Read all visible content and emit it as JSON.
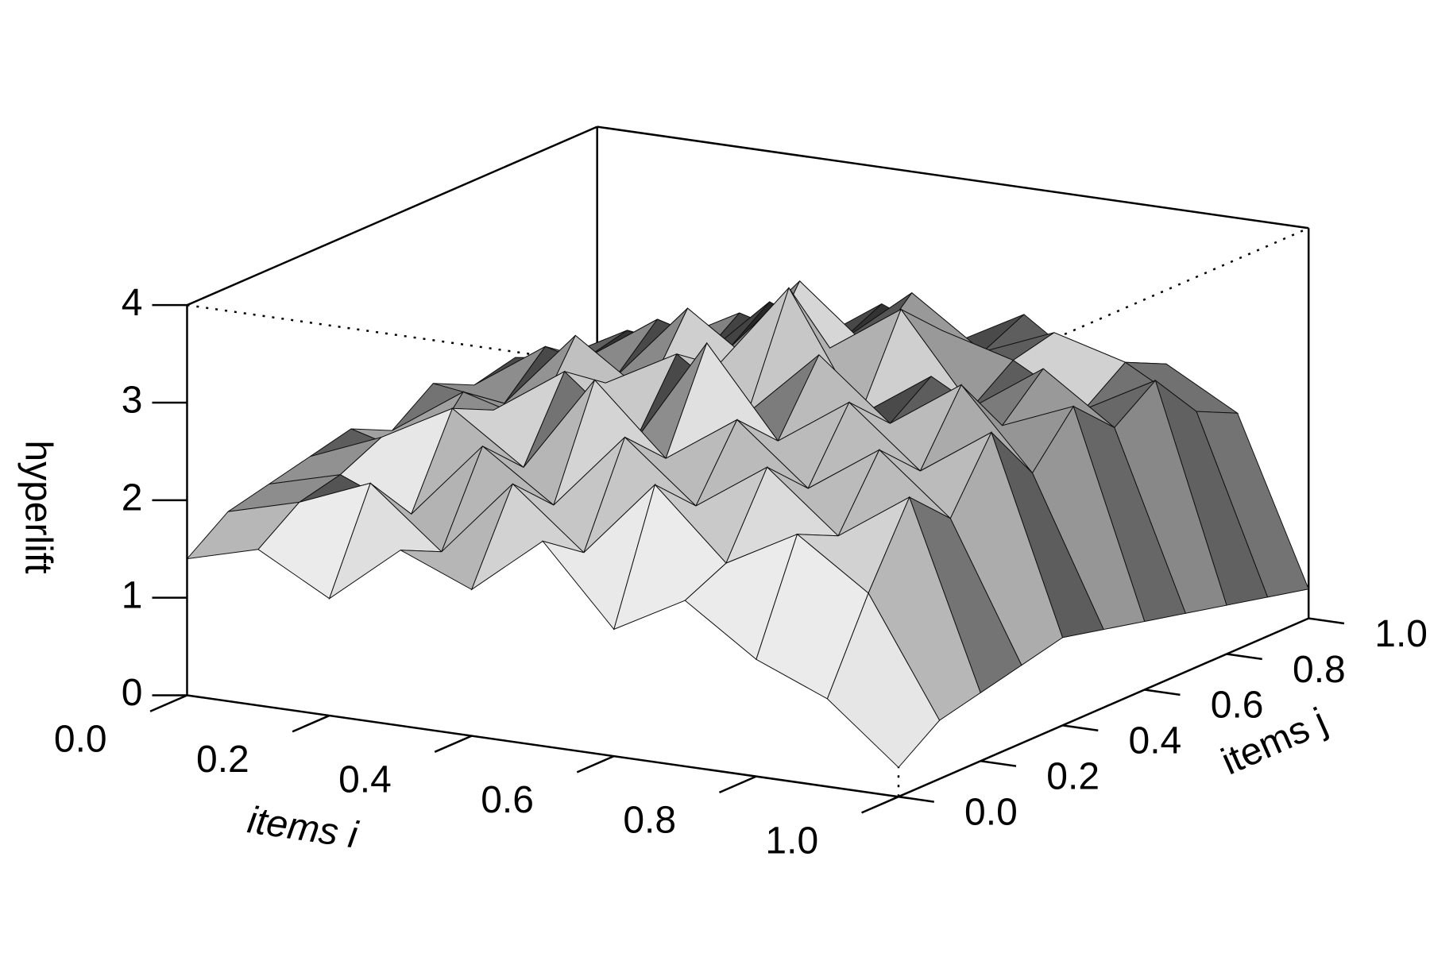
{
  "chart_data": {
    "type": "surface",
    "xlabel": "items i",
    "ylabel": "items j",
    "zlabel": "hyperlift",
    "x": [
      0,
      0.1,
      0.2,
      0.3,
      0.4,
      0.5,
      0.6,
      0.7,
      0.8,
      0.9,
      1
    ],
    "y": [
      0,
      0.1,
      0.2,
      0.3,
      0.4,
      0.5,
      0.6,
      0.7,
      0.8,
      0.9,
      1
    ],
    "z": [
      [
        1.4,
        1.6,
        1.2,
        1.8,
        1.5,
        2.1,
        1.3,
        1.7,
        1.2,
        0.9,
        0.3
      ],
      [
        1.7,
        1.9,
        2.2,
        1.6,
        2.4,
        1.8,
        2.6,
        1.9,
        2.3,
        1.8,
        0.6
      ],
      [
        1.8,
        2.0,
        1.7,
        2.5,
        2.0,
        2.8,
        2.2,
        2.7,
        2.1,
        2.6,
        0.7
      ],
      [
        1.9,
        2.2,
        2.6,
        2.1,
        3.1,
        2.4,
        2.9,
        2.3,
        2.8,
        2.2,
        0.8
      ],
      [
        2.0,
        1.8,
        2.4,
        2.9,
        2.3,
        3.4,
        2.5,
        3.0,
        2.4,
        2.9,
        0.9
      ],
      [
        1.8,
        2.3,
        2.1,
        2.6,
        3.0,
        2.5,
        3.2,
        2.6,
        3.1,
        2.3,
        0.8
      ],
      [
        2.1,
        2.0,
        2.8,
        2.3,
        2.7,
        3.6,
        2.4,
        2.9,
        2.5,
        2.8,
        0.7
      ],
      [
        1.9,
        2.4,
        2.2,
        3.0,
        2.5,
        2.8,
        3.3,
        2.4,
        2.9,
        2.4,
        0.6
      ],
      [
        2.0,
        2.1,
        2.6,
        2.4,
        3.2,
        2.6,
        2.9,
        2.7,
        2.3,
        2.7,
        0.5
      ],
      [
        1.8,
        2.2,
        2.0,
        2.7,
        2.4,
        3.0,
        2.5,
        2.8,
        2.6,
        2.2,
        0.4
      ],
      [
        1.7,
        1.9,
        2.3,
        2.1,
        2.6,
        2.3,
        2.7,
        2.2,
        2.4,
        2.0,
        0.3
      ]
    ],
    "xlim": [
      0,
      1
    ],
    "ylim": [
      0,
      1
    ],
    "zlim": [
      0,
      4
    ],
    "xticks": [
      {
        "value": 0,
        "label": "0.0"
      },
      {
        "value": 0.2,
        "label": "0.2"
      },
      {
        "value": 0.4,
        "label": "0.4"
      },
      {
        "value": 0.6,
        "label": "0.6"
      },
      {
        "value": 0.8,
        "label": "0.8"
      },
      {
        "value": 1,
        "label": "1.0"
      }
    ],
    "yticks": [
      {
        "value": 0,
        "label": "0.0"
      },
      {
        "value": 0.2,
        "label": "0.2"
      },
      {
        "value": 0.4,
        "label": "0.4"
      },
      {
        "value": 0.6,
        "label": "0.6"
      },
      {
        "value": 0.8,
        "label": "0.8"
      },
      {
        "value": 1,
        "label": "1.0"
      }
    ],
    "zticks": [
      0,
      1,
      2,
      3,
      4
    ]
  }
}
